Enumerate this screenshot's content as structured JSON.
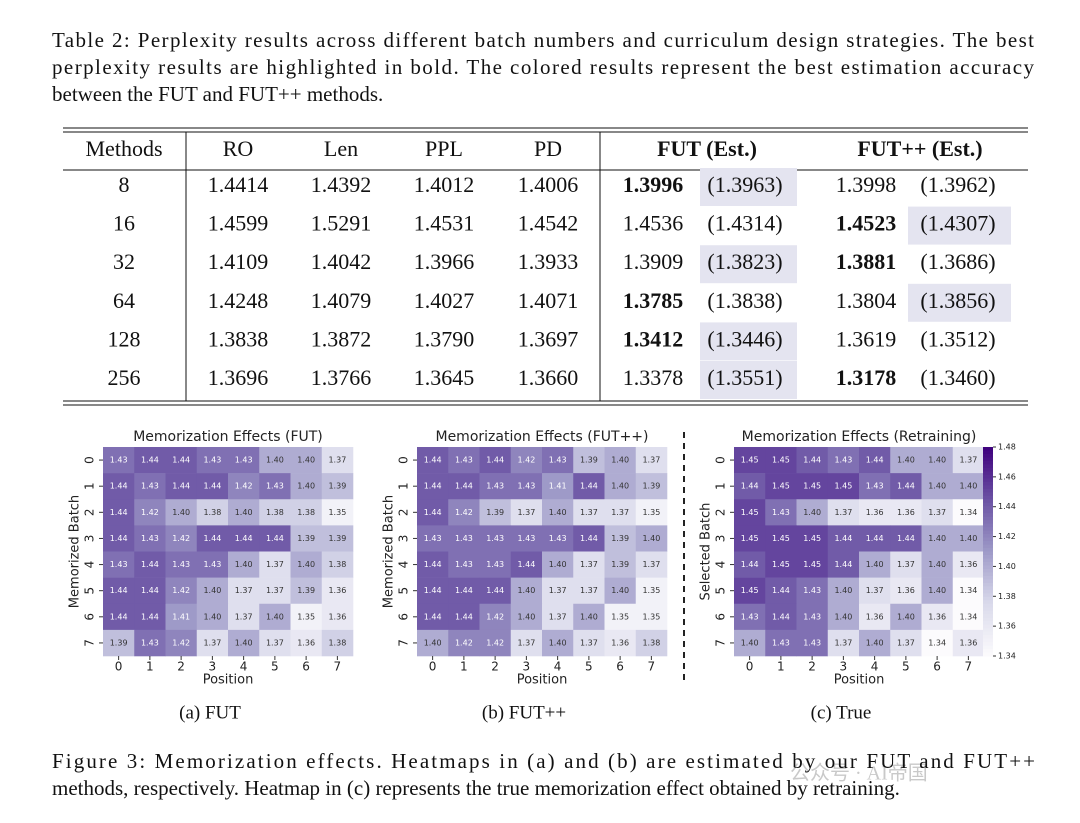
{
  "table": {
    "caption_lines": [
      "Table 2: Perplexity results across different batch numbers and curriculum design strategies. The best",
      "perplexity results are highlighted in bold. The colored results represent the best estimation accuracy",
      "between the FUT and FUT++ methods."
    ],
    "header": [
      "Methods",
      "RO",
      "Len",
      "PPL",
      "PD",
      "FUT (Est.)",
      "FUT++ (Est.)"
    ],
    "rows": [
      [
        "8",
        "1.4414",
        "1.4392",
        "1.4012",
        "1.4006",
        "1.3996",
        "(1.3963)",
        "1.3998",
        "(1.3962)"
      ],
      [
        "16",
        "1.4599",
        "1.5291",
        "1.4531",
        "1.4542",
        "1.4536",
        "(1.4314)",
        "1.4523",
        "(1.4307)"
      ],
      [
        "32",
        "1.4109",
        "1.4042",
        "1.3966",
        "1.3933",
        "1.3909",
        "(1.3823)",
        "1.3881",
        "(1.3686)"
      ],
      [
        "64",
        "1.4248",
        "1.4079",
        "1.4027",
        "1.4071",
        "1.3785",
        "(1.3838)",
        "1.3804",
        "(1.3856)"
      ],
      [
        "128",
        "1.3838",
        "1.3872",
        "1.3790",
        "1.3697",
        "1.3412",
        "(1.3446)",
        "1.3619",
        "(1.3512)"
      ],
      [
        "256",
        "1.3696",
        "1.3766",
        "1.3645",
        "1.3660",
        "1.3378",
        "(1.3551)",
        "1.3178",
        "(1.3460)"
      ]
    ]
  },
  "chart_data": [
    {
      "type": "heatmap",
      "title": "Memorization Effects (FUT)",
      "xlabel": "Position",
      "ylabel": "Memorized Batch",
      "subcaption": "(a) FUT",
      "x": [
        0,
        1,
        2,
        3,
        4,
        5,
        6,
        7
      ],
      "y": [
        0,
        1,
        2,
        3,
        4,
        5,
        6,
        7
      ],
      "cmap": "Purples",
      "clim": [
        1.34,
        1.48
      ],
      "values": [
        [
          1.43,
          1.44,
          1.44,
          1.43,
          1.43,
          1.4,
          1.4,
          1.37
        ],
        [
          1.44,
          1.43,
          1.44,
          1.44,
          1.42,
          1.43,
          1.4,
          1.39
        ],
        [
          1.44,
          1.42,
          1.4,
          1.38,
          1.4,
          1.38,
          1.38,
          1.35
        ],
        [
          1.44,
          1.43,
          1.42,
          1.44,
          1.44,
          1.44,
          1.39,
          1.39
        ],
        [
          1.43,
          1.44,
          1.43,
          1.43,
          1.4,
          1.37,
          1.4,
          1.38
        ],
        [
          1.44,
          1.44,
          1.42,
          1.4,
          1.37,
          1.37,
          1.39,
          1.36
        ],
        [
          1.44,
          1.44,
          1.41,
          1.4,
          1.37,
          1.4,
          1.35,
          1.36
        ],
        [
          1.39,
          1.43,
          1.42,
          1.37,
          1.4,
          1.37,
          1.36,
          1.38
        ]
      ],
      "value_labels": [
        [
          "1.43",
          "1.44",
          "1.44",
          "1.43",
          "1.43",
          "1.40",
          "1.40",
          "1.37"
        ],
        [
          "1.44",
          "1.43",
          "1.44",
          "1.44",
          "1.42",
          "1.43",
          "1.40",
          "1.39"
        ],
        [
          "1.44",
          "1.42",
          "1.40",
          "1.38",
          "1.40",
          "1.38",
          "1.38",
          "1.35"
        ],
        [
          "1.44",
          "1.43",
          "1.42",
          "1.44",
          "1.44",
          "1.44",
          "1.39",
          "1.39"
        ],
        [
          "1.43",
          "1.44",
          "1.43",
          "1.43",
          "1.40",
          "1.37",
          "1.40",
          "1.38"
        ],
        [
          "1.44",
          "1.44",
          "1.42",
          "1.40",
          "1.37",
          "1.37",
          "1.39",
          "1.36"
        ],
        [
          "1.44",
          "1.44",
          "1.41",
          "1.40",
          "1.37",
          "1.40",
          "1.35",
          "1.36"
        ],
        [
          "1.39",
          "1.43",
          "1.42",
          "1.37",
          "1.40",
          "1.37",
          "1.36",
          "1.38"
        ]
      ]
    },
    {
      "type": "heatmap",
      "title": "Memorization Effects (FUT++)",
      "xlabel": "Position",
      "ylabel": "Memorized Batch",
      "subcaption": "(b) FUT++",
      "x": [
        0,
        1,
        2,
        3,
        4,
        5,
        6,
        7
      ],
      "y": [
        0,
        1,
        2,
        3,
        4,
        5,
        6,
        7
      ],
      "cmap": "Purples",
      "clim": [
        1.34,
        1.48
      ],
      "values": [
        [
          1.44,
          1.43,
          1.44,
          1.42,
          1.43,
          1.39,
          1.4,
          1.37
        ],
        [
          1.44,
          1.44,
          1.43,
          1.43,
          1.41,
          1.44,
          1.4,
          1.39
        ],
        [
          1.44,
          1.42,
          1.39,
          1.37,
          1.4,
          1.37,
          1.37,
          1.35
        ],
        [
          1.43,
          1.43,
          1.43,
          1.43,
          1.43,
          1.44,
          1.39,
          1.4
        ],
        [
          1.44,
          1.43,
          1.43,
          1.44,
          1.4,
          1.37,
          1.39,
          1.37
        ],
        [
          1.44,
          1.44,
          1.44,
          1.4,
          1.37,
          1.37,
          1.4,
          1.35
        ],
        [
          1.44,
          1.44,
          1.42,
          1.4,
          1.37,
          1.4,
          1.35,
          1.35
        ],
        [
          1.4,
          1.42,
          1.42,
          1.37,
          1.4,
          1.37,
          1.36,
          1.38
        ]
      ],
      "value_labels": [
        [
          "1.44",
          "1.43",
          "1.44",
          "1.42",
          "1.43",
          "1.39",
          "1.40",
          "1.37"
        ],
        [
          "1.44",
          "1.44",
          "1.43",
          "1.43",
          "1.41",
          "1.44",
          "1.40",
          "1.39"
        ],
        [
          "1.44",
          "1.42",
          "1.39",
          "1.37",
          "1.40",
          "1.37",
          "1.37",
          "1.35"
        ],
        [
          "1.43",
          "1.43",
          "1.43",
          "1.43",
          "1.43",
          "1.44",
          "1.39",
          "1.40"
        ],
        [
          "1.44",
          "1.43",
          "1.43",
          "1.44",
          "1.40",
          "1.37",
          "1.39",
          "1.37"
        ],
        [
          "1.44",
          "1.44",
          "1.44",
          "1.40",
          "1.37",
          "1.37",
          "1.40",
          "1.35"
        ],
        [
          "1.44",
          "1.44",
          "1.42",
          "1.40",
          "1.37",
          "1.40",
          "1.35",
          "1.35"
        ],
        [
          "1.40",
          "1.42",
          "1.42",
          "1.37",
          "1.40",
          "1.37",
          "1.36",
          "1.38"
        ]
      ]
    },
    {
      "type": "heatmap",
      "title": "Memorization Effects (Retraining)",
      "xlabel": "Position",
      "ylabel": "Selected Batch",
      "subcaption": "(c) True",
      "x": [
        0,
        1,
        2,
        3,
        4,
        5,
        6,
        7
      ],
      "y": [
        0,
        1,
        2,
        3,
        4,
        5,
        6,
        7
      ],
      "cmap": "Purples",
      "clim": [
        1.34,
        1.48
      ],
      "colorbar": true,
      "cticks": [
        {
          "value": 1.34,
          "label": "1.34"
        },
        {
          "value": 1.36,
          "label": "1.36"
        },
        {
          "value": 1.38,
          "label": "1.38"
        },
        {
          "value": 1.4,
          "label": "1.40"
        },
        {
          "value": 1.42,
          "label": "1.42"
        },
        {
          "value": 1.44,
          "label": "1.44"
        },
        {
          "value": 1.46,
          "label": "1.46"
        },
        {
          "value": 1.48,
          "label": "1.48"
        }
      ],
      "values": [
        [
          1.45,
          1.45,
          1.44,
          1.43,
          1.44,
          1.4,
          1.4,
          1.37
        ],
        [
          1.44,
          1.45,
          1.45,
          1.45,
          1.43,
          1.44,
          1.4,
          1.4
        ],
        [
          1.45,
          1.43,
          1.4,
          1.37,
          1.36,
          1.36,
          1.37,
          1.34
        ],
        [
          1.45,
          1.45,
          1.45,
          1.44,
          1.44,
          1.44,
          1.4,
          1.4
        ],
        [
          1.44,
          1.45,
          1.45,
          1.44,
          1.4,
          1.37,
          1.4,
          1.36
        ],
        [
          1.45,
          1.44,
          1.43,
          1.4,
          1.37,
          1.36,
          1.4,
          1.34
        ],
        [
          1.43,
          1.44,
          1.43,
          1.4,
          1.36,
          1.4,
          1.36,
          1.34
        ],
        [
          1.4,
          1.43,
          1.43,
          1.37,
          1.4,
          1.37,
          1.34,
          1.36
        ]
      ],
      "value_labels": [
        [
          "1.45",
          "1.45",
          "1.44",
          "1.43",
          "1.44",
          "1.40",
          "1.40",
          "1.37"
        ],
        [
          "1.44",
          "1.45",
          "1.45",
          "1.45",
          "1.43",
          "1.44",
          "1.40",
          "1.40"
        ],
        [
          "1.45",
          "1.43",
          "1.40",
          "1.37",
          "1.36",
          "1.36",
          "1.37",
          "1.34"
        ],
        [
          "1.45",
          "1.45",
          "1.45",
          "1.44",
          "1.44",
          "1.44",
          "1.40",
          "1.40"
        ],
        [
          "1.44",
          "1.45",
          "1.45",
          "1.44",
          "1.40",
          "1.37",
          "1.40",
          "1.36"
        ],
        [
          "1.45",
          "1.44",
          "1.43",
          "1.40",
          "1.37",
          "1.36",
          "1.40",
          "1.34"
        ],
        [
          "1.43",
          "1.44",
          "1.43",
          "1.40",
          "1.36",
          "1.40",
          "1.36",
          "1.34"
        ],
        [
          "1.40",
          "1.43",
          "1.43",
          "1.37",
          "1.40",
          "1.37",
          "1.34",
          "1.36"
        ]
      ]
    }
  ],
  "figure_caption_lines": [
    "Figure 3: Memorization effects. Heatmaps in (a) and (b) are estimated by our FUT and FUT++",
    "methods, respectively. Heatmap in (c) represents the true memorization effect obtained by retraining."
  ],
  "watermark": "公众号 · AI帝国"
}
